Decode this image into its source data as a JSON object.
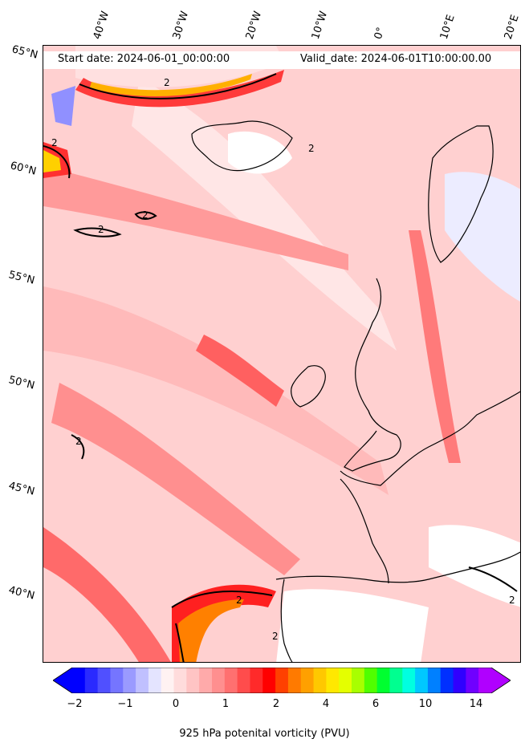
{
  "map": {
    "start_date": "Start date: 2024-06-01_00:00:00",
    "valid_date": "Valid_date: 2024-06-01T10:00:00.00",
    "latitude_labels": [
      "65°N",
      "60°N",
      "55°N",
      "50°N",
      "45°N",
      "40°N"
    ],
    "longitude_labels": [
      "40°W",
      "30°W",
      "20°W",
      "10°W",
      "0°",
      "10°E",
      "20°E"
    ],
    "contour_level_label": "2",
    "colors": {
      "land_coastline": "#000000",
      "background_pv": "#ffd6d6",
      "high_pv_red": "#ff2020",
      "negative_pv_blue": "#c8c8ff"
    }
  },
  "colorbar": {
    "label": "925 hPa potenital vorticity (PVU)",
    "tick_labels": [
      "−2",
      "−1",
      "0",
      "1",
      "2",
      "4",
      "6",
      "10",
      "14"
    ],
    "colors": [
      "#0000ff",
      "#2a2aff",
      "#5050ff",
      "#7575ff",
      "#9a9aff",
      "#c0c0ff",
      "#e4e4ff",
      "#fff2f2",
      "#ffdcdc",
      "#ffc4c4",
      "#ffaaaa",
      "#ff8f8f",
      "#ff7070",
      "#ff4c4c",
      "#ff2a2a",
      "#ff0000",
      "#ff4000",
      "#ff7a00",
      "#ffa000",
      "#ffc800",
      "#ffe800",
      "#e4ff00",
      "#a8ff00",
      "#50ff00",
      "#00ff30",
      "#00ff90",
      "#00ffe0",
      "#00c8ff",
      "#0080ff",
      "#0030ff",
      "#3000ff",
      "#7000ff",
      "#b000ff"
    ]
  }
}
